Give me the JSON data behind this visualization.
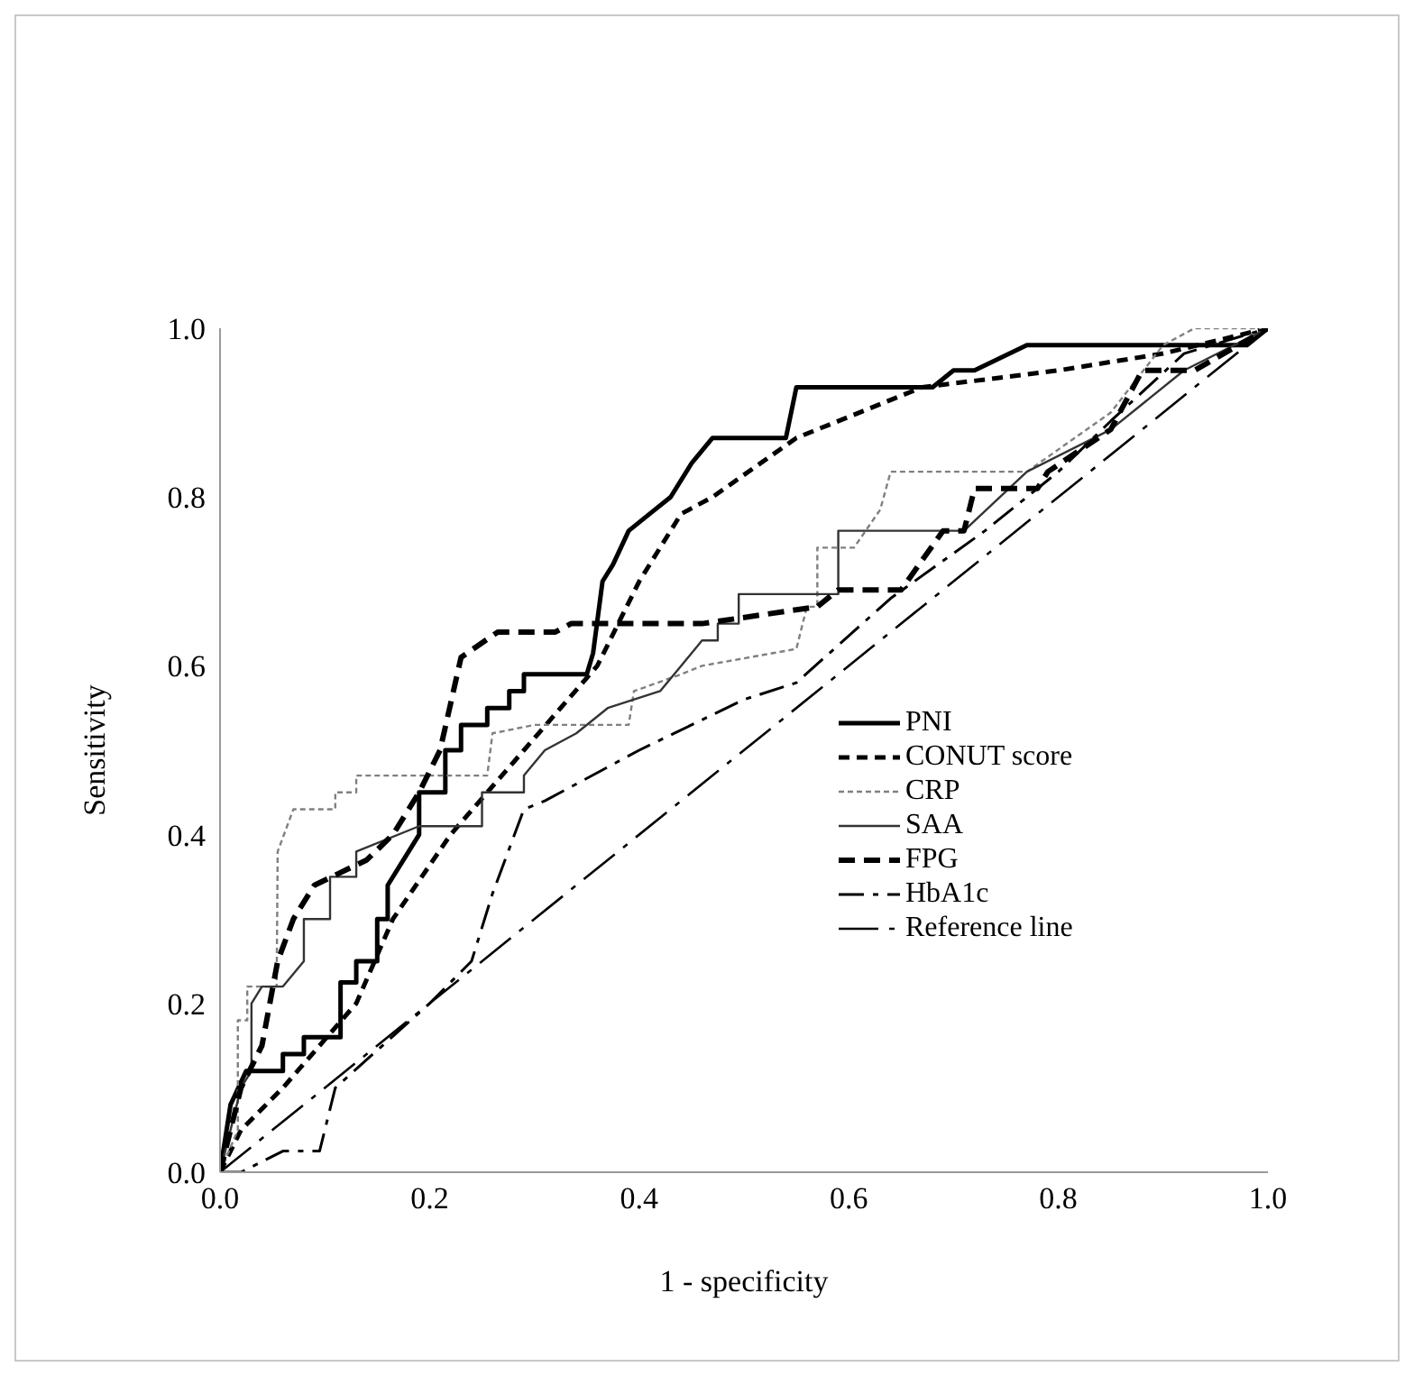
{
  "chart_data": {
    "type": "line",
    "xlabel": "1 - specificity",
    "ylabel": "Sensitivity",
    "xlim": [
      0,
      1
    ],
    "ylim": [
      0,
      1
    ],
    "xticks": [
      {
        "value": 0,
        "label": "0.0"
      },
      0.2,
      0.4,
      0.6,
      0.8,
      {
        "value": 1,
        "label": "1.0"
      }
    ],
    "yticks": [
      {
        "value": 0,
        "label": "0.0"
      },
      0.2,
      0.4,
      0.6,
      0.8,
      {
        "value": 1,
        "label": "1.0"
      }
    ],
    "legend": "bottom right",
    "marker": "none",
    "series": [
      {
        "name": "PNI",
        "color": "#000000",
        "line_style": "solid",
        "x": [
          0,
          0.01,
          0.025,
          0.06,
          0.06,
          0.08,
          0.08,
          0.115,
          0.115,
          0.13,
          0.13,
          0.15,
          0.15,
          0.16,
          0.16,
          0.18,
          0.19,
          0.19,
          0.215,
          0.215,
          0.23,
          0.23,
          0.255,
          0.255,
          0.276,
          0.276,
          0.29,
          0.29,
          0.35,
          0.356,
          0.365,
          0.375,
          0.39,
          0.41,
          0.43,
          0.45,
          0.47,
          0.54,
          0.55,
          0.68,
          0.7,
          0.72,
          0.77,
          0.98,
          1
        ],
        "values": [
          0,
          0.08,
          0.12,
          0.12,
          0.14,
          0.14,
          0.16,
          0.16,
          0.225,
          0.225,
          0.25,
          0.25,
          0.3,
          0.3,
          0.34,
          0.38,
          0.4,
          0.45,
          0.45,
          0.5,
          0.5,
          0.53,
          0.53,
          0.55,
          0.55,
          0.57,
          0.57,
          0.59,
          0.59,
          0.615,
          0.7,
          0.72,
          0.76,
          0.78,
          0.8,
          0.84,
          0.87,
          0.87,
          0.93,
          0.93,
          0.95,
          0.95,
          0.98,
          0.98,
          1
        ]
      },
      {
        "name": "CONUT score",
        "color": "#000000",
        "line_style": "dashed",
        "x": [
          0,
          0.02,
          0.06,
          0.13,
          0.165,
          0.22,
          0.29,
          0.36,
          0.4,
          0.44,
          0.47,
          0.55,
          0.67,
          0.8,
          0.9,
          1
        ],
        "values": [
          0,
          0.05,
          0.1,
          0.2,
          0.3,
          0.4,
          0.5,
          0.6,
          0.7,
          0.78,
          0.8,
          0.87,
          0.93,
          0.95,
          0.97,
          1
        ]
      },
      {
        "name": "CRP",
        "color": "#808080",
        "line_style": "dotted",
        "x": [
          0,
          0.017,
          0.017,
          0.026,
          0.026,
          0.054,
          0.055,
          0.07,
          0.11,
          0.11,
          0.13,
          0.13,
          0.255,
          0.26,
          0.3,
          0.39,
          0.395,
          0.44,
          0.46,
          0.55,
          0.56,
          0.57,
          0.57,
          0.605,
          0.63,
          0.64,
          0.77,
          0.85,
          0.9,
          0.93,
          1
        ],
        "values": [
          0,
          0.05,
          0.18,
          0.18,
          0.22,
          0.22,
          0.38,
          0.43,
          0.43,
          0.45,
          0.45,
          0.47,
          0.47,
          0.52,
          0.53,
          0.53,
          0.57,
          0.59,
          0.6,
          0.62,
          0.67,
          0.67,
          0.74,
          0.74,
          0.785,
          0.83,
          0.83,
          0.9,
          0.98,
          1,
          1
        ]
      },
      {
        "name": "SAA",
        "color": "#333333",
        "line_style": "solid",
        "x": [
          0,
          0.02,
          0.03,
          0.03,
          0.04,
          0.06,
          0.08,
          0.08,
          0.105,
          0.105,
          0.13,
          0.13,
          0.19,
          0.25,
          0.25,
          0.29,
          0.29,
          0.31,
          0.34,
          0.37,
          0.42,
          0.44,
          0.46,
          0.475,
          0.475,
          0.495,
          0.495,
          0.59,
          0.59,
          0.71,
          0.77,
          0.85,
          0.92,
          1
        ],
        "values": [
          0,
          0.1,
          0.12,
          0.2,
          0.22,
          0.22,
          0.25,
          0.3,
          0.3,
          0.35,
          0.35,
          0.38,
          0.41,
          0.41,
          0.45,
          0.45,
          0.47,
          0.5,
          0.52,
          0.55,
          0.57,
          0.6,
          0.63,
          0.63,
          0.65,
          0.65,
          0.685,
          0.685,
          0.76,
          0.76,
          0.83,
          0.88,
          0.95,
          1
        ]
      },
      {
        "name": "FPG",
        "color": "#000000",
        "line_style": "dashed",
        "x": [
          0,
          0.02,
          0.04,
          0.055,
          0.07,
          0.09,
          0.14,
          0.165,
          0.19,
          0.21,
          0.23,
          0.265,
          0.32,
          0.335,
          0.46,
          0.57,
          0.59,
          0.65,
          0.69,
          0.71,
          0.72,
          0.78,
          0.79,
          0.85,
          0.88,
          0.93,
          1
        ],
        "values": [
          0,
          0.1,
          0.15,
          0.25,
          0.3,
          0.34,
          0.37,
          0.4,
          0.45,
          0.5,
          0.61,
          0.64,
          0.64,
          0.65,
          0.65,
          0.67,
          0.69,
          0.69,
          0.76,
          0.76,
          0.81,
          0.81,
          0.83,
          0.88,
          0.95,
          0.95,
          1
        ]
      },
      {
        "name": "HbA1c",
        "color": "#000000",
        "line_style": "dashdot",
        "x": [
          0,
          0.02,
          0.06,
          0.095,
          0.11,
          0.2,
          0.24,
          0.26,
          0.29,
          0.31,
          0.4,
          0.5,
          0.55,
          0.64,
          0.73,
          0.8,
          0.85,
          0.92,
          1
        ],
        "values": [
          0,
          0,
          0.025,
          0.025,
          0.1,
          0.2,
          0.25,
          0.33,
          0.43,
          0.44,
          0.5,
          0.56,
          0.58,
          0.68,
          0.76,
          0.83,
          0.89,
          0.97,
          1
        ]
      },
      {
        "name": "Reference line",
        "color": "#000000",
        "line_style": "dashdot",
        "x": [
          0,
          1
        ],
        "values": [
          0,
          1
        ]
      }
    ]
  }
}
